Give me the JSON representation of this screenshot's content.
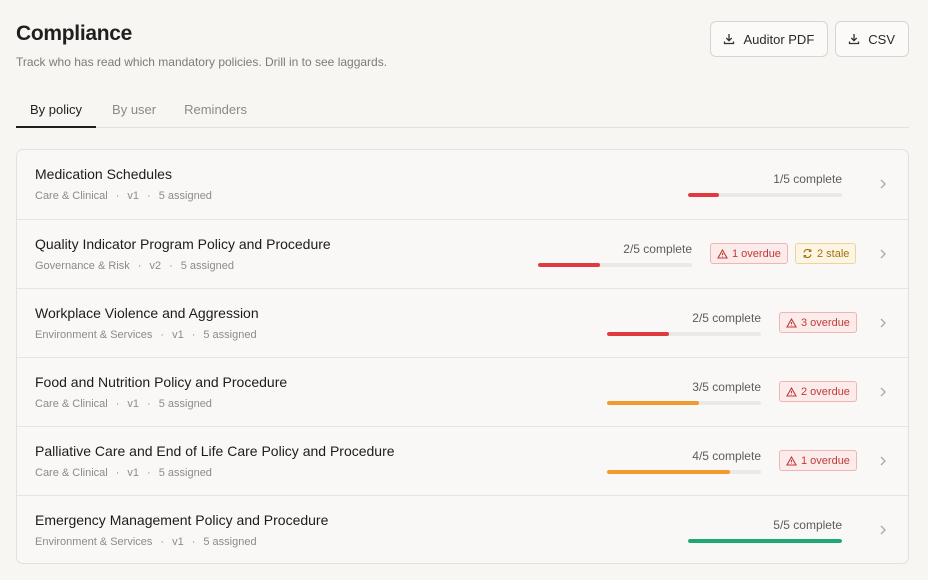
{
  "header": {
    "title": "Compliance",
    "subtitle": "Track who has read which mandatory policies. Drill in to see laggards."
  },
  "actions": {
    "auditor_pdf": "Auditor PDF",
    "csv": "CSV"
  },
  "tabs": [
    {
      "label": "By policy",
      "active": true
    },
    {
      "label": "By user",
      "active": false
    },
    {
      "label": "Reminders",
      "active": false
    }
  ],
  "colors": {
    "low": "#e0393e",
    "mid": "#ef9a2f",
    "complete": "#1fa874"
  },
  "policies": [
    {
      "title": "Medication Schedules",
      "category": "Care & Clinical",
      "version": "v1",
      "assigned": "5 assigned",
      "progress_text": "1/5 complete",
      "progress": 0.2,
      "status": "low",
      "overdue": "",
      "stale": ""
    },
    {
      "title": "Quality Indicator Program Policy and Procedure",
      "category": "Governance & Risk",
      "version": "v2",
      "assigned": "5 assigned",
      "progress_text": "2/5 complete",
      "progress": 0.4,
      "status": "low",
      "overdue": "1 overdue",
      "stale": "2 stale"
    },
    {
      "title": "Workplace Violence and Aggression",
      "category": "Environment & Services",
      "version": "v1",
      "assigned": "5 assigned",
      "progress_text": "2/5 complete",
      "progress": 0.4,
      "status": "low",
      "overdue": "3 overdue",
      "stale": ""
    },
    {
      "title": "Food and Nutrition Policy and Procedure",
      "category": "Care & Clinical",
      "version": "v1",
      "assigned": "5 assigned",
      "progress_text": "3/5 complete",
      "progress": 0.6,
      "status": "mid",
      "overdue": "2 overdue",
      "stale": ""
    },
    {
      "title": "Palliative Care and End of Life Care Policy and Procedure",
      "category": "Care & Clinical",
      "version": "v1",
      "assigned": "5 assigned",
      "progress_text": "4/5 complete",
      "progress": 0.8,
      "status": "mid",
      "overdue": "1 overdue",
      "stale": ""
    },
    {
      "title": "Emergency Management Policy and Procedure",
      "category": "Environment & Services",
      "version": "v1",
      "assigned": "5 assigned",
      "progress_text": "5/5 complete",
      "progress": 1.0,
      "status": "complete",
      "overdue": "",
      "stale": ""
    }
  ]
}
